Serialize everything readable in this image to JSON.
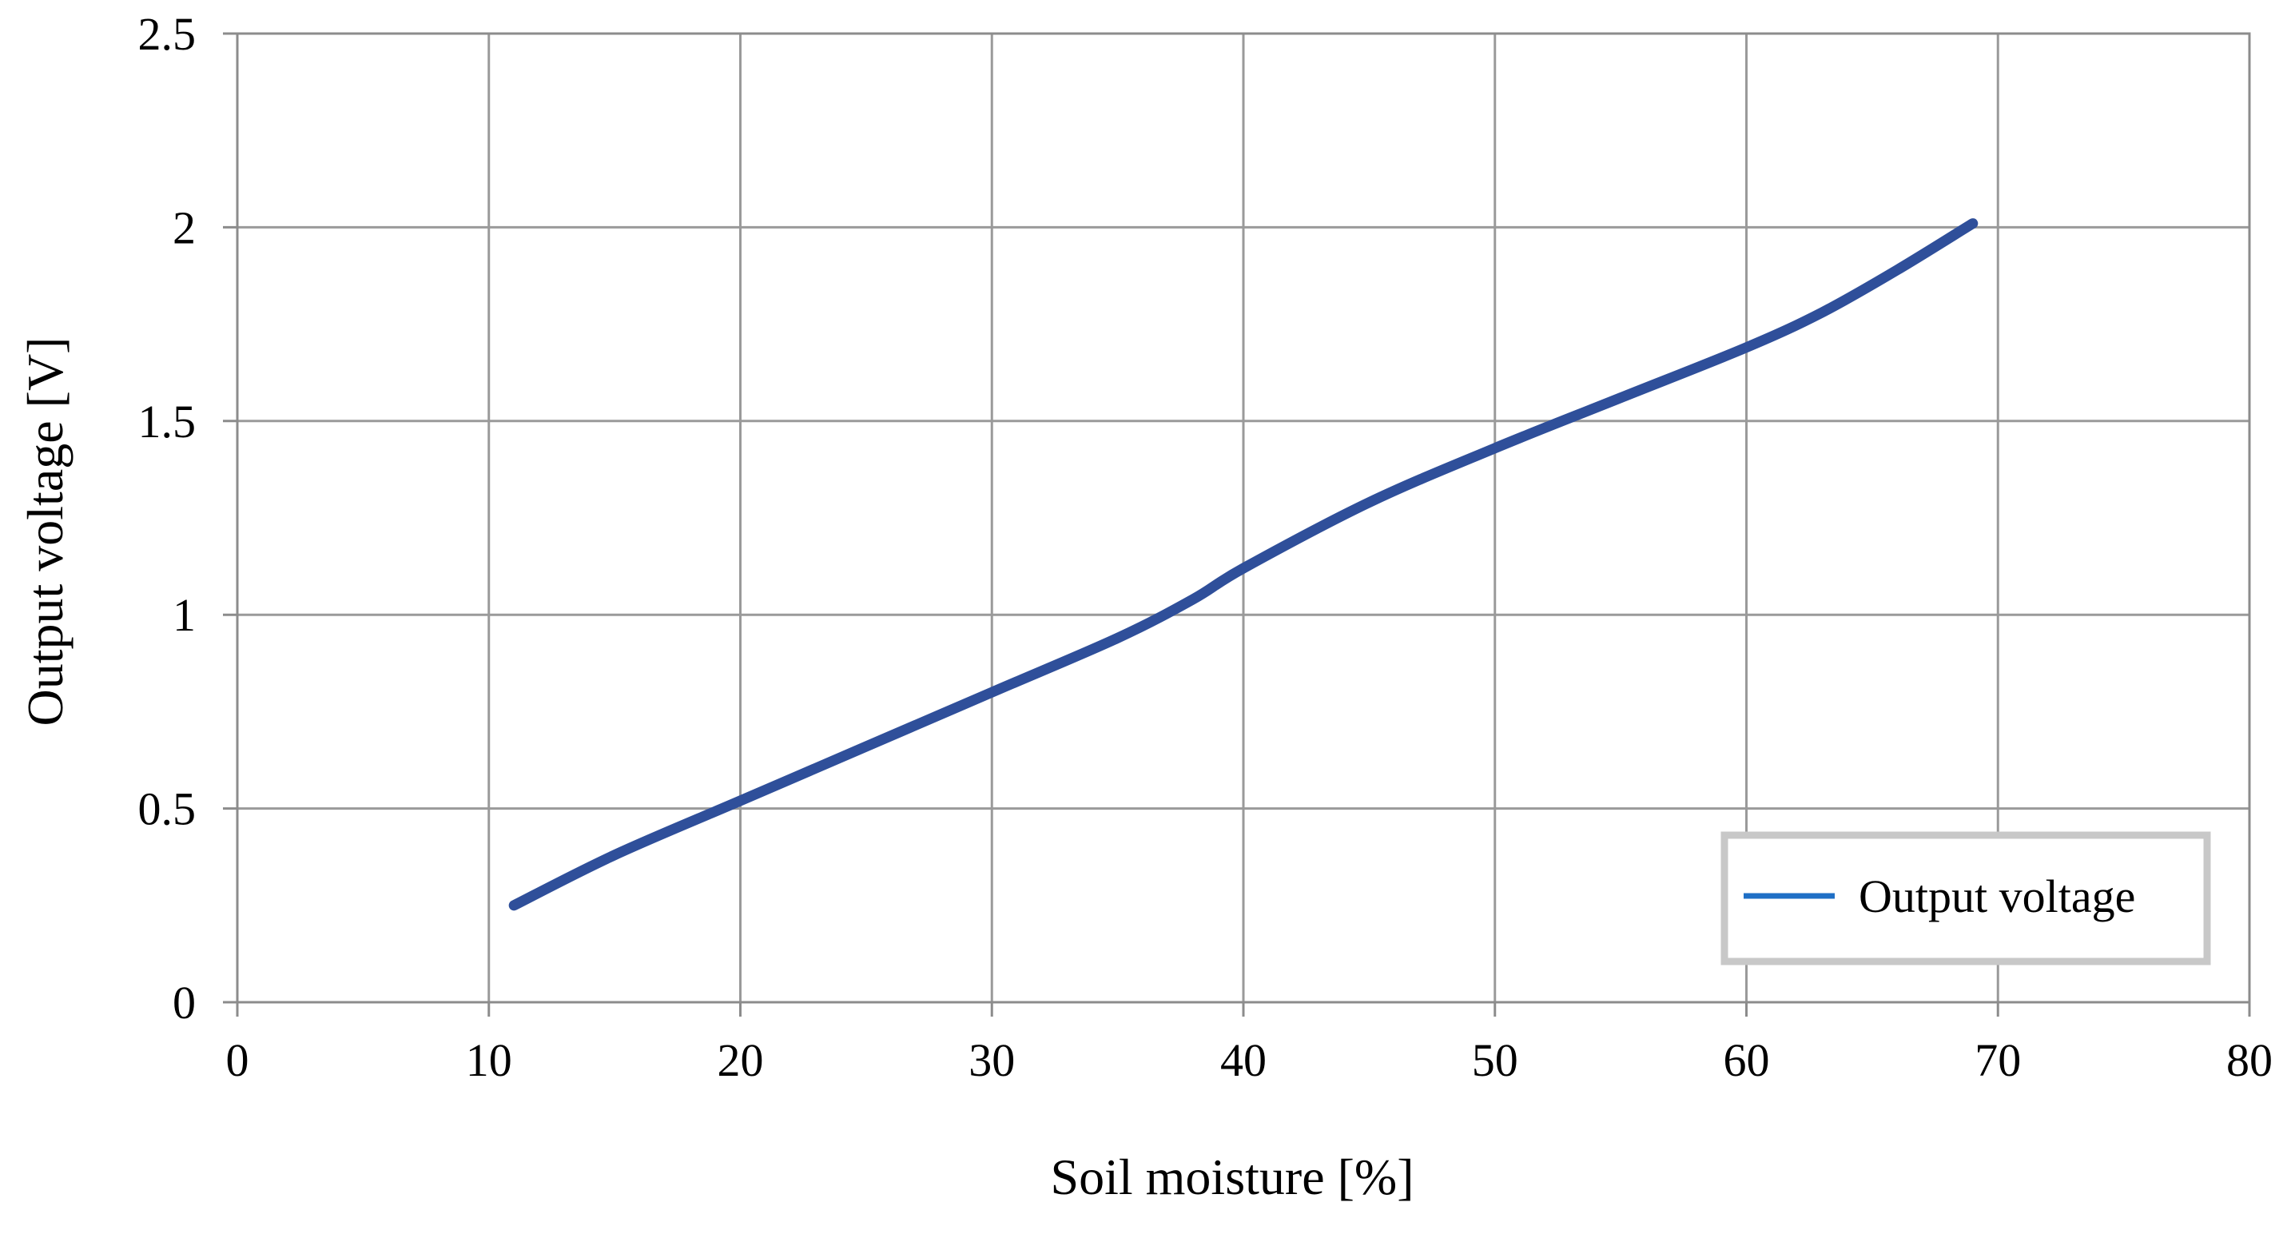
{
  "chart_data": {
    "type": "line",
    "xlabel": "Soil moisture [%]",
    "ylabel": "Output voltage [V]",
    "xlim": [
      0,
      80
    ],
    "ylim": [
      0,
      2.5
    ],
    "x_ticks": [
      "0",
      "10",
      "20",
      "30",
      "40",
      "50",
      "60",
      "70",
      "80"
    ],
    "y_ticks": [
      "0",
      "0.5",
      "1",
      "1.5",
      "2",
      "2.5"
    ],
    "grid": true,
    "legend_position": "bottom-right",
    "series": [
      {
        "name": "Output voltage",
        "color": "#2f4f9a",
        "legend_color": "#1f6fc6",
        "x": [
          11,
          15,
          20,
          25,
          30,
          35,
          38,
          40,
          45,
          50,
          55,
          60,
          63,
          66,
          69
        ],
        "y": [
          0.25,
          0.38,
          0.52,
          0.66,
          0.8,
          0.94,
          1.04,
          1.12,
          1.29,
          1.43,
          1.56,
          1.69,
          1.78,
          1.89,
          2.01
        ]
      }
    ]
  }
}
